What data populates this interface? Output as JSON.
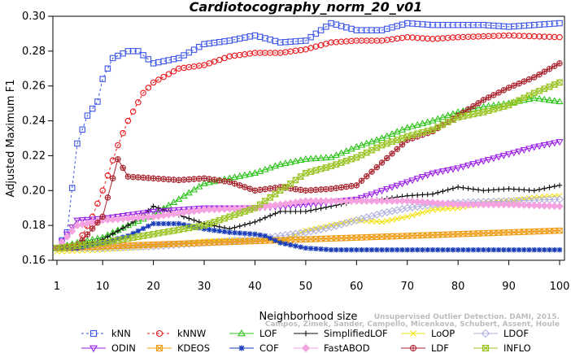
{
  "chart_data": {
    "type": "line",
    "title": "Cardiotocography_norm_20_v01",
    "xlabel": "Neighborhood size",
    "ylabel": "Adjusted Maximum F1",
    "xlim": [
      1,
      100
    ],
    "ylim": [
      0.16,
      0.3
    ],
    "x_ticks": [
      1,
      10,
      20,
      30,
      40,
      50,
      60,
      70,
      80,
      90,
      100
    ],
    "x_tick_labels": [
      "1",
      "10",
      "20",
      "30",
      "40",
      "50",
      "60",
      "70",
      "80",
      "90",
      "100"
    ],
    "y_ticks": [
      0.16,
      0.18,
      0.2,
      0.22,
      0.24,
      0.26,
      0.28,
      0.3
    ],
    "y_tick_labels": [
      "0.16",
      "0.18",
      "0.20",
      "0.22",
      "0.24",
      "0.26",
      "0.28",
      "0.30"
    ],
    "grid": false,
    "legend_position": "bottom",
    "credit": "Unsupervised Outlier Detection. DAMI, 2015. Campos, Zimek, Sander, Campello, Micenkova, Schubert, Assent, Houle",
    "series": [
      {
        "name": "kNN",
        "color": "#3b55e6",
        "marker": "square",
        "dash": "3,3",
        "points": [
          [
            1,
            0.167
          ],
          [
            3,
            0.176
          ],
          [
            5,
            0.227
          ],
          [
            7,
            0.243
          ],
          [
            9,
            0.251
          ],
          [
            10,
            0.264
          ],
          [
            12,
            0.276
          ],
          [
            15,
            0.28
          ],
          [
            17,
            0.28
          ],
          [
            20,
            0.273
          ],
          [
            25,
            0.276
          ],
          [
            30,
            0.284
          ],
          [
            35,
            0.286
          ],
          [
            40,
            0.289
          ],
          [
            45,
            0.285
          ],
          [
            50,
            0.286
          ],
          [
            55,
            0.296
          ],
          [
            60,
            0.292
          ],
          [
            65,
            0.292
          ],
          [
            70,
            0.296
          ],
          [
            75,
            0.295
          ],
          [
            80,
            0.295
          ],
          [
            85,
            0.295
          ],
          [
            90,
            0.294
          ],
          [
            95,
            0.295
          ],
          [
            100,
            0.296
          ]
        ]
      },
      {
        "name": "kNNW",
        "color": "#e8161b",
        "marker": "circle",
        "dash": "3,3",
        "points": [
          [
            1,
            0.167
          ],
          [
            5,
            0.169
          ],
          [
            8,
            0.185
          ],
          [
            10,
            0.2
          ],
          [
            13,
            0.226
          ],
          [
            15,
            0.24
          ],
          [
            18,
            0.256
          ],
          [
            20,
            0.262
          ],
          [
            25,
            0.27
          ],
          [
            30,
            0.272
          ],
          [
            35,
            0.277
          ],
          [
            40,
            0.279
          ],
          [
            45,
            0.279
          ],
          [
            50,
            0.281
          ],
          [
            55,
            0.285
          ],
          [
            60,
            0.286
          ],
          [
            65,
            0.286
          ],
          [
            70,
            0.288
          ],
          [
            75,
            0.287
          ],
          [
            80,
            0.288
          ],
          [
            90,
            0.289
          ],
          [
            100,
            0.288
          ]
        ]
      },
      {
        "name": "LOF",
        "color": "#2ec41b",
        "marker": "triangle",
        "dash": "",
        "points": [
          [
            1,
            0.167
          ],
          [
            5,
            0.17
          ],
          [
            10,
            0.173
          ],
          [
            15,
            0.18
          ],
          [
            20,
            0.186
          ],
          [
            25,
            0.195
          ],
          [
            30,
            0.204
          ],
          [
            35,
            0.207
          ],
          [
            40,
            0.21
          ],
          [
            45,
            0.215
          ],
          [
            50,
            0.218
          ],
          [
            55,
            0.219
          ],
          [
            60,
            0.225
          ],
          [
            65,
            0.23
          ],
          [
            70,
            0.236
          ],
          [
            75,
            0.24
          ],
          [
            80,
            0.245
          ],
          [
            85,
            0.248
          ],
          [
            90,
            0.25
          ],
          [
            95,
            0.253
          ],
          [
            100,
            0.251
          ]
        ]
      },
      {
        "name": "SimplifiedLOF",
        "color": "#111111",
        "marker": "plus",
        "dash": "",
        "points": [
          [
            1,
            0.167
          ],
          [
            5,
            0.168
          ],
          [
            10,
            0.172
          ],
          [
            15,
            0.18
          ],
          [
            18,
            0.186
          ],
          [
            20,
            0.191
          ],
          [
            25,
            0.186
          ],
          [
            30,
            0.181
          ],
          [
            35,
            0.178
          ],
          [
            40,
            0.182
          ],
          [
            45,
            0.188
          ],
          [
            50,
            0.188
          ],
          [
            55,
            0.191
          ],
          [
            60,
            0.194
          ],
          [
            65,
            0.195
          ],
          [
            70,
            0.197
          ],
          [
            75,
            0.198
          ],
          [
            80,
            0.202
          ],
          [
            85,
            0.2
          ],
          [
            90,
            0.201
          ],
          [
            95,
            0.2
          ],
          [
            100,
            0.203
          ]
        ]
      },
      {
        "name": "LoOP",
        "color": "#f2e316",
        "marker": "x",
        "dash": "",
        "points": [
          [
            1,
            0.165
          ],
          [
            10,
            0.166
          ],
          [
            20,
            0.168
          ],
          [
            30,
            0.171
          ],
          [
            40,
            0.172
          ],
          [
            45,
            0.171
          ],
          [
            50,
            0.177
          ],
          [
            55,
            0.18
          ],
          [
            60,
            0.183
          ],
          [
            65,
            0.182
          ],
          [
            70,
            0.185
          ],
          [
            75,
            0.189
          ],
          [
            80,
            0.19
          ],
          [
            85,
            0.193
          ],
          [
            90,
            0.194
          ],
          [
            95,
            0.196
          ],
          [
            100,
            0.197
          ]
        ]
      },
      {
        "name": "LDOF",
        "color": "#b0b0de",
        "marker": "diamond",
        "dash": "",
        "points": [
          [
            1,
            0.167
          ],
          [
            10,
            0.167
          ],
          [
            20,
            0.168
          ],
          [
            30,
            0.17
          ],
          [
            40,
            0.172
          ],
          [
            50,
            0.176
          ],
          [
            55,
            0.179
          ],
          [
            60,
            0.183
          ],
          [
            65,
            0.187
          ],
          [
            70,
            0.19
          ],
          [
            75,
            0.192
          ],
          [
            80,
            0.193
          ],
          [
            90,
            0.194
          ],
          [
            100,
            0.195
          ]
        ]
      },
      {
        "name": "ODIN",
        "color": "#9b21e6",
        "marker": "triangle-down",
        "dash": "",
        "points": [
          [
            1,
            0.167
          ],
          [
            3,
            0.175
          ],
          [
            5,
            0.183
          ],
          [
            10,
            0.184
          ],
          [
            15,
            0.186
          ],
          [
            20,
            0.188
          ],
          [
            30,
            0.19
          ],
          [
            40,
            0.19
          ],
          [
            50,
            0.192
          ],
          [
            60,
            0.195
          ],
          [
            65,
            0.2
          ],
          [
            70,
            0.205
          ],
          [
            75,
            0.21
          ],
          [
            80,
            0.213
          ],
          [
            85,
            0.217
          ],
          [
            90,
            0.221
          ],
          [
            95,
            0.225
          ],
          [
            100,
            0.228
          ]
        ]
      },
      {
        "name": "KDEOS",
        "color": "#ef9b12",
        "marker": "square-x",
        "dash": "",
        "points": [
          [
            1,
            0.167
          ],
          [
            10,
            0.168
          ],
          [
            20,
            0.169
          ],
          [
            30,
            0.17
          ],
          [
            40,
            0.171
          ],
          [
            50,
            0.172
          ],
          [
            60,
            0.173
          ],
          [
            70,
            0.174
          ],
          [
            80,
            0.175
          ],
          [
            90,
            0.176
          ],
          [
            100,
            0.177
          ]
        ]
      },
      {
        "name": "COF",
        "color": "#1a3db8",
        "marker": "star",
        "dash": "",
        "points": [
          [
            1,
            0.167
          ],
          [
            5,
            0.167
          ],
          [
            10,
            0.17
          ],
          [
            15,
            0.174
          ],
          [
            20,
            0.181
          ],
          [
            25,
            0.181
          ],
          [
            30,
            0.178
          ],
          [
            35,
            0.176
          ],
          [
            40,
            0.175
          ],
          [
            42,
            0.174
          ],
          [
            45,
            0.17
          ],
          [
            50,
            0.167
          ],
          [
            55,
            0.166
          ],
          [
            60,
            0.166
          ],
          [
            70,
            0.166
          ],
          [
            80,
            0.166
          ],
          [
            90,
            0.166
          ],
          [
            100,
            0.166
          ]
        ]
      },
      {
        "name": "FastABOD",
        "color": "#f5a3e0",
        "marker": "diamond-fill",
        "dash": "",
        "points": [
          [
            1,
            0.167
          ],
          [
            5,
            0.18
          ],
          [
            10,
            0.183
          ],
          [
            20,
            0.185
          ],
          [
            30,
            0.189
          ],
          [
            40,
            0.19
          ],
          [
            50,
            0.194
          ],
          [
            60,
            0.194
          ],
          [
            70,
            0.194
          ],
          [
            80,
            0.192
          ],
          [
            90,
            0.192
          ],
          [
            100,
            0.191
          ]
        ]
      },
      {
        "name": "LDF",
        "color": "#a8232e",
        "marker": "circle-plus",
        "dash": "",
        "points": [
          [
            1,
            0.167
          ],
          [
            5,
            0.168
          ],
          [
            10,
            0.185
          ],
          [
            13,
            0.218
          ],
          [
            15,
            0.208
          ],
          [
            20,
            0.207
          ],
          [
            25,
            0.206
          ],
          [
            30,
            0.207
          ],
          [
            35,
            0.205
          ],
          [
            40,
            0.2
          ],
          [
            45,
            0.202
          ],
          [
            50,
            0.2
          ],
          [
            55,
            0.201
          ],
          [
            60,
            0.203
          ],
          [
            65,
            0.216
          ],
          [
            70,
            0.229
          ],
          [
            75,
            0.234
          ],
          [
            80,
            0.243
          ],
          [
            85,
            0.252
          ],
          [
            90,
            0.259
          ],
          [
            95,
            0.265
          ],
          [
            100,
            0.273
          ]
        ]
      },
      {
        "name": "INFLO",
        "color": "#9bc425",
        "marker": "sandglass",
        "dash": "",
        "points": [
          [
            1,
            0.167
          ],
          [
            10,
            0.17
          ],
          [
            20,
            0.175
          ],
          [
            30,
            0.18
          ],
          [
            40,
            0.19
          ],
          [
            45,
            0.2
          ],
          [
            50,
            0.21
          ],
          [
            55,
            0.214
          ],
          [
            60,
            0.219
          ],
          [
            65,
            0.226
          ],
          [
            70,
            0.231
          ],
          [
            75,
            0.235
          ],
          [
            80,
            0.242
          ],
          [
            85,
            0.245
          ],
          [
            90,
            0.249
          ],
          [
            95,
            0.256
          ],
          [
            100,
            0.262
          ]
        ]
      }
    ]
  }
}
